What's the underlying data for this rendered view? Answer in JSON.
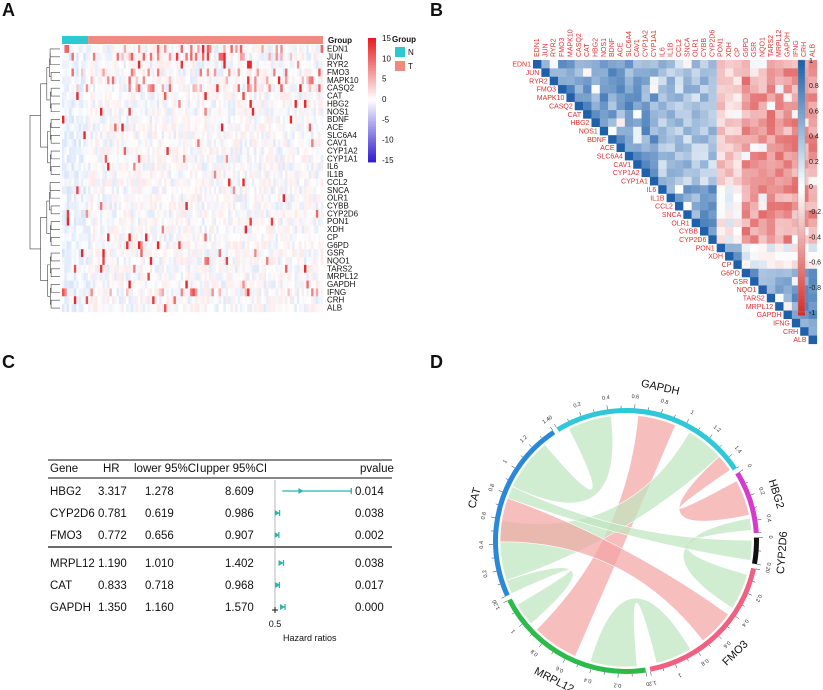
{
  "panels": {
    "a": "A",
    "b": "B",
    "c": "C",
    "d": "D"
  },
  "genes": [
    "EDN1",
    "JUN",
    "RYR2",
    "FMO3",
    "MAPK10",
    "CASQ2",
    "CAT",
    "HBG2",
    "NOS1",
    "BDNF",
    "ACE",
    "SLC6A4",
    "CAV1",
    "CYP1A2",
    "CYP1A1",
    "IL6",
    "IL1B",
    "CCL2",
    "SNCA",
    "OLR1",
    "CYBB",
    "CYP2D6",
    "PON1",
    "XDH",
    "CP",
    "G6PD",
    "GSR",
    "NQO1",
    "TARS2",
    "MRPL12",
    "GAPDH",
    "IFNG",
    "CRH",
    "ALB"
  ],
  "chart_data": [
    {
      "type": "heatmap",
      "panel": "A",
      "rows": [
        "EDN1",
        "JUN",
        "RYR2",
        "FMO3",
        "MAPK10",
        "CASQ2",
        "CAT",
        "HBG2",
        "NOS1",
        "BDNF",
        "ACE",
        "SLC6A4",
        "CAV1",
        "CYP1A2",
        "CYP1A1",
        "IL6",
        "IL1B",
        "CCL2",
        "SNCA",
        "OLR1",
        "CYBB",
        "CYP2D6",
        "PON1",
        "XDH",
        "CP",
        "G6PD",
        "GSR",
        "NQO1",
        "TARS2",
        "MRPL12",
        "GAPDH",
        "IFNG",
        "CRH",
        "ALB"
      ],
      "annotation_title": "Group",
      "groups": [
        {
          "name": "N",
          "color": "#2ec8cf"
        },
        {
          "name": "T",
          "color": "#f08a80"
        }
      ],
      "colorbar": {
        "ticks": [
          15,
          10,
          5,
          0,
          -5,
          -10,
          -15
        ],
        "range": [
          -15,
          15
        ]
      }
    },
    {
      "type": "heatmap",
      "panel": "B",
      "subtype": "correlation-lower-triangle",
      "variables": [
        "EDN1",
        "JUN",
        "RYR2",
        "FMO3",
        "MAPK10",
        "CASQ2",
        "CAT",
        "HBG2",
        "NOS1",
        "BDNF",
        "ACE",
        "SLC6A4",
        "CAV1",
        "CYP1A2",
        "CYP1A1",
        "IL6",
        "IL1B",
        "CCL2",
        "SNCA",
        "OLR1",
        "CYBB",
        "CYP2D6",
        "PON1",
        "XDH",
        "CP",
        "G6PD",
        "GSR",
        "NQO1",
        "TARS2",
        "MRPL12",
        "GAPDH",
        "IFNG",
        "CRH",
        "ALB"
      ],
      "colorbar": {
        "ticks": [
          "1",
          "0.8",
          "0.6",
          "0.4",
          "0.2",
          "0",
          "-0.2",
          "-0.4",
          "-0.6",
          "-0.8",
          "-1"
        ],
        "range": [
          -1,
          1
        ]
      }
    },
    {
      "type": "table",
      "panel": "C",
      "subtype": "forest-plot",
      "columns": [
        "Gene",
        "HR",
        "lower 95%CI",
        "upper 95%CI",
        "pvalue"
      ],
      "rows": [
        {
          "gene": "HBG2",
          "hr": "3.317",
          "lower": "1.278",
          "upper": "8.609",
          "pvalue": "0.014"
        },
        {
          "gene": "CYP2D6",
          "hr": "0.781",
          "lower": "0.619",
          "upper": "0.986",
          "pvalue": "0.038"
        },
        {
          "gene": "FMO3",
          "hr": "0.772",
          "lower": "0.656",
          "upper": "0.907",
          "pvalue": "0.002"
        },
        {
          "gene": "MRPL12",
          "hr": "1.190",
          "lower": "1.010",
          "upper": "1.402",
          "pvalue": "0.038"
        },
        {
          "gene": "CAT",
          "hr": "0.833",
          "lower": "0.718",
          "upper": "0.968",
          "pvalue": "0.017"
        },
        {
          "gene": "GAPDH",
          "hr": "1.350",
          "lower": "1.160",
          "upper": "1.570",
          "pvalue": "0.000"
        }
      ],
      "xlabel": "Hazard ratios",
      "x_tick": "0.5",
      "marker_color": "#2bb5b0"
    },
    {
      "type": "chord",
      "panel": "D",
      "sectors": [
        {
          "name": "GAPDH",
          "color": "#2ec8d8",
          "span": 1.9
        },
        {
          "name": "HBG2",
          "color": "#d63ad0",
          "span": 0.6
        },
        {
          "name": "CYP2D6",
          "color": "#111111",
          "span": 0.25
        },
        {
          "name": "FMO3",
          "color": "#f06080",
          "span": 1.45
        },
        {
          "name": "MRPL12",
          "color": "#2cbb4a",
          "span": 1.55
        },
        {
          "name": "CAT",
          "color": "#2a88d8",
          "span": 1.75
        }
      ],
      "tick_labels": [
        "0",
        "0.2",
        "0.4",
        "0.6",
        "0.8",
        "1",
        "1.2",
        "1.4",
        "1.6",
        "1.8"
      ],
      "positive_color": "#f4a2a2",
      "negative_color": "#bde6bd"
    }
  ]
}
